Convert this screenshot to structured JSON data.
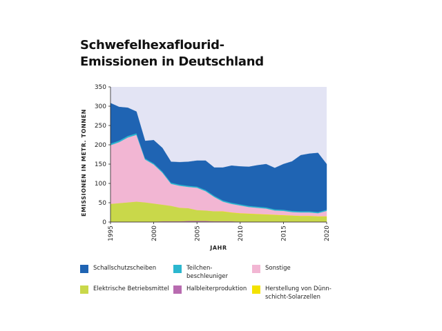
{
  "chart_data": {
    "type": "area",
    "stacked": true,
    "title_lines": [
      "Schwefelhexaflourid-",
      "Emissionen in Deutschland"
    ],
    "xlabel": "JAHR",
    "ylabel": "EMISSIONEN IN METR. TONNEN",
    "xlim": [
      1995,
      2020
    ],
    "ylim": [
      0,
      350
    ],
    "x_ticks": [
      1995,
      2000,
      2005,
      2010,
      2015,
      2020
    ],
    "y_ticks": [
      0,
      50,
      100,
      150,
      200,
      250,
      300,
      350
    ],
    "background": "#e3e4f4",
    "grid": false,
    "x": [
      1995,
      1996,
      1997,
      1998,
      1999,
      2000,
      2001,
      2002,
      2003,
      2004,
      2005,
      2006,
      2007,
      2008,
      2009,
      2010,
      2011,
      2012,
      2013,
      2014,
      2015,
      2016,
      2017,
      2018,
      2019,
      2020
    ],
    "series": [
      {
        "name": "Halbleiterproduktion",
        "color": "#b86bb0",
        "values": [
          1,
          1,
          1,
          1,
          1,
          1,
          2,
          2,
          2,
          3,
          3,
          3,
          2,
          2,
          2,
          1,
          1,
          1,
          1,
          1,
          1,
          1,
          1,
          1,
          1,
          1
        ]
      },
      {
        "name": "Elektrische Betriebsmittel",
        "color": "#c9d84a",
        "values": [
          46,
          48,
          50,
          52,
          50,
          47,
          43,
          40,
          35,
          33,
          28,
          27,
          26,
          25,
          22,
          21,
          20,
          19,
          18,
          17,
          16,
          15,
          14,
          14,
          13,
          13
        ]
      },
      {
        "name": "Herstellung von Dünnschicht-Solarzellen",
        "color": "#f3e200",
        "values": [
          0,
          0,
          0,
          0,
          0,
          0,
          0,
          0,
          0,
          0,
          0,
          0,
          0,
          1,
          1,
          1,
          1,
          1,
          1,
          1,
          1,
          1,
          1,
          1,
          1,
          1
        ]
      },
      {
        "name": "Sonstige",
        "color": "#f2b6d3",
        "values": [
          152,
          158,
          168,
          173,
          111,
          101,
          83,
          57,
          57,
          55,
          58,
          50,
          37,
          25,
          22,
          20,
          17,
          16,
          15,
          11,
          11,
          9,
          9,
          9,
          8,
          14
        ]
      },
      {
        "name": "Teilchenbeschleuniger",
        "color": "#2bb7cf",
        "values": [
          4,
          4,
          4,
          4,
          3,
          3,
          3,
          3,
          3,
          3,
          3,
          3,
          3,
          3,
          3,
          3,
          3,
          3,
          3,
          3,
          3,
          3,
          3,
          3,
          3,
          3
        ]
      },
      {
        "name": "Schallschutzscheiben",
        "color": "#1f64b3",
        "values": [
          105,
          87,
          73,
          56,
          45,
          60,
          61,
          54,
          58,
          62,
          67,
          76,
          73,
          85,
          96,
          98,
          101,
          107,
          112,
          107,
          118,
          128,
          145,
          149,
          153,
          118
        ]
      }
    ],
    "legend": {
      "placement": "bottom",
      "items": [
        {
          "label": "Schallschutzscheiben",
          "color": "#1f64b3"
        },
        {
          "label": "Teilchen-\nbeschleuniger",
          "color": "#2bb7cf"
        },
        {
          "label": "Sonstige",
          "color": "#f2b6d3"
        },
        {
          "label": "Elektrische Betriebsmittel",
          "color": "#c9d84a"
        },
        {
          "label": "Halbleiterproduktion",
          "color": "#b86bb0"
        },
        {
          "label": "Herstellung von Dünn-\nschicht-Solarzellen",
          "color": "#f3e200"
        }
      ]
    }
  }
}
